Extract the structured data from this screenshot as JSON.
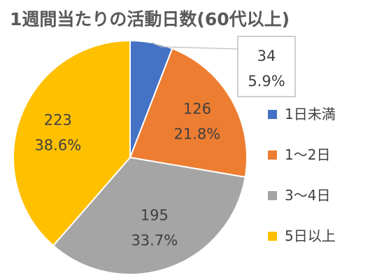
{
  "chart_data": {
    "type": "pie",
    "title": "1週間当たりの活動日数(60代以上)",
    "categories": [
      "1日未満",
      "1～2日",
      "3～4日",
      "5日以上"
    ],
    "values": [
      34,
      126,
      195,
      223
    ],
    "percent_labels": [
      "5.9%",
      "21.8%",
      "33.7%",
      "38.6%"
    ],
    "colors": [
      "#4472C4",
      "#ED7D31",
      "#A5A5A5",
      "#FFC000"
    ],
    "start_angle": "12 o'clock",
    "direction": "clockwise",
    "legend_position": "right"
  }
}
